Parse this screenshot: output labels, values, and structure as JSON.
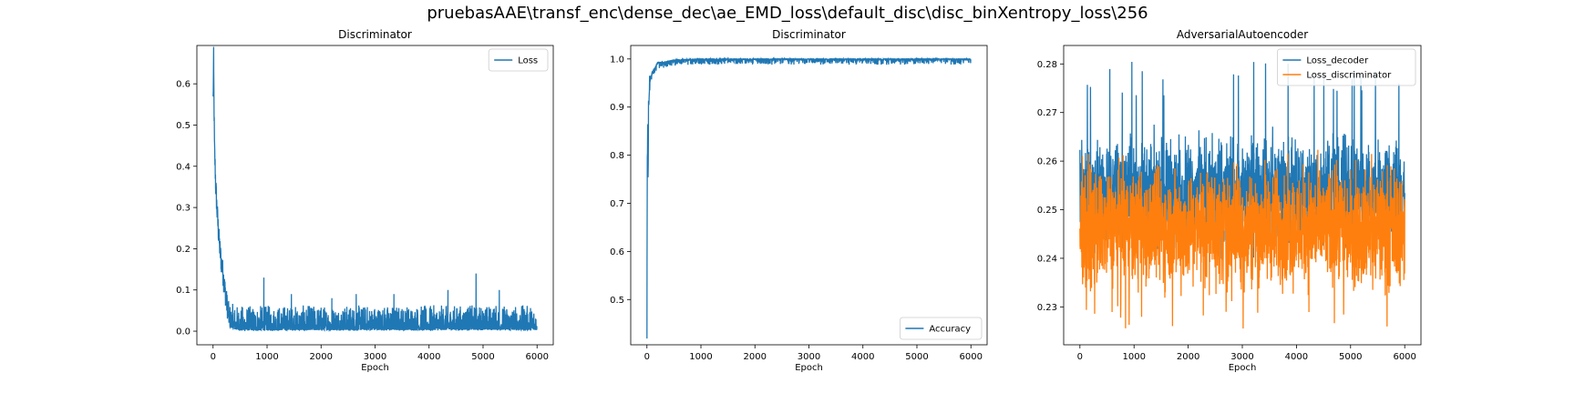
{
  "figure": {
    "suptitle": "pruebasAAE\\transf_enc\\dense_dec\\ae_EMD_loss\\default_disc\\disc_binXentropy_loss\\256"
  },
  "chart_data": [
    {
      "type": "line",
      "title": "Discriminator",
      "xlabel": "Epoch",
      "ylabel": "",
      "xlim": [
        -300,
        6300
      ],
      "ylim": [
        -0.033,
        0.693
      ],
      "xticks": [
        0,
        1000,
        2000,
        3000,
        4000,
        5000,
        6000
      ],
      "yticks": [
        0.0,
        0.1,
        0.2,
        0.3,
        0.4,
        0.5,
        0.6
      ],
      "legend": "upper right",
      "series": [
        {
          "name": "Loss",
          "color": "#1f77b4",
          "x": [
            0,
            10,
            25,
            50,
            75,
            100,
            125,
            150,
            175,
            200,
            250,
            300,
            400,
            500,
            600,
            800,
            1000,
            1500,
            2000,
            2500,
            3000,
            3500,
            4000,
            4500,
            5000,
            5500,
            6000
          ],
          "y": [
            0.56,
            0.66,
            0.45,
            0.35,
            0.29,
            0.24,
            0.2,
            0.17,
            0.15,
            0.12,
            0.07,
            0.035,
            0.015,
            0.008,
            0.006,
            0.007,
            0.008,
            0.009,
            0.009,
            0.01,
            0.01,
            0.01,
            0.01,
            0.011,
            0.012,
            0.011,
            0.01
          ],
          "spikes": [
            {
              "x": 940,
              "y": 0.13
            },
            {
              "x": 1450,
              "y": 0.09
            },
            {
              "x": 2200,
              "y": 0.08
            },
            {
              "x": 2650,
              "y": 0.09
            },
            {
              "x": 3350,
              "y": 0.09
            },
            {
              "x": 4350,
              "y": 0.1
            },
            {
              "x": 4870,
              "y": 0.14
            },
            {
              "x": 5300,
              "y": 0.1
            }
          ]
        }
      ]
    },
    {
      "type": "line",
      "title": "Discriminator",
      "xlabel": "Epoch",
      "ylabel": "",
      "xlim": [
        -300,
        6300
      ],
      "ylim": [
        0.406,
        1.028
      ],
      "xticks": [
        0,
        1000,
        2000,
        3000,
        4000,
        5000,
        6000
      ],
      "yticks": [
        0.5,
        0.6,
        0.7,
        0.8,
        0.9,
        1.0
      ],
      "legend": "lower right",
      "series": [
        {
          "name": "Accuracy",
          "color": "#1f77b4",
          "x": [
            0,
            5,
            10,
            15,
            20,
            30,
            40,
            50,
            70,
            100,
            150,
            200,
            300,
            500,
            1000,
            2000,
            3000,
            4000,
            5000,
            6000
          ],
          "y": [
            0.43,
            0.74,
            0.82,
            0.88,
            0.75,
            0.9,
            0.93,
            0.95,
            0.96,
            0.97,
            0.98,
            0.99,
            0.99,
            0.995,
            0.997,
            0.997,
            0.997,
            0.997,
            0.997,
            0.997
          ]
        }
      ]
    },
    {
      "type": "line",
      "title": "AdversarialAutoencoder",
      "xlabel": "Epoch",
      "ylabel": "",
      "xlim": [
        -300,
        6300
      ],
      "ylim": [
        0.2222,
        0.2838
      ],
      "xticks": [
        0,
        1000,
        2000,
        3000,
        4000,
        5000,
        6000
      ],
      "yticks": [
        0.23,
        0.24,
        0.25,
        0.26,
        0.27,
        0.28
      ],
      "legend": "upper right",
      "series": [
        {
          "name": "Loss_decoder",
          "color": "#1f77b4",
          "x": [
            0,
            6000
          ],
          "y": [
            0.2537,
            0.2537
          ],
          "band": [
            0.237,
            0.281
          ]
        },
        {
          "name": "Loss_discriminator",
          "color": "#ff7f0e",
          "x": [
            0,
            6000
          ],
          "y": [
            0.2463,
            0.2463
          ],
          "band": [
            0.2255,
            0.272
          ]
        }
      ]
    }
  ]
}
